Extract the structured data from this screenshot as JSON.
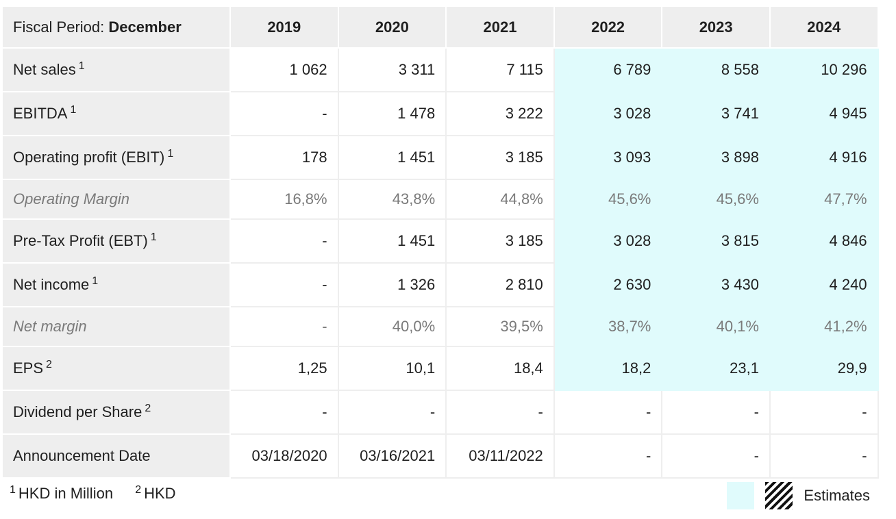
{
  "header": {
    "period_label": "Fiscal Period:",
    "period_value": "December",
    "years": [
      "2019",
      "2020",
      "2021",
      "2022",
      "2023",
      "2024"
    ]
  },
  "rows": [
    {
      "label": "Net sales",
      "note": "1",
      "values": [
        "1 062",
        "3 311",
        "7 115",
        "6 789",
        "8 558",
        "10 296"
      ]
    },
    {
      "label": "EBITDA",
      "note": "1",
      "values": [
        "-",
        "1 478",
        "3 222",
        "3 028",
        "3 741",
        "4 945"
      ]
    },
    {
      "label": "Operating profit (EBIT)",
      "note": "1",
      "values": [
        "178",
        "1 451",
        "3 185",
        "3 093",
        "3 898",
        "4 916"
      ]
    },
    {
      "label": "Operating Margin",
      "note": "",
      "values": [
        "16,8%",
        "43,8%",
        "44,8%",
        "45,6%",
        "45,6%",
        "47,7%"
      ]
    },
    {
      "label": "Pre-Tax Profit (EBT)",
      "note": "1",
      "values": [
        "-",
        "1 451",
        "3 185",
        "3 028",
        "3 815",
        "4 846"
      ]
    },
    {
      "label": "Net income",
      "note": "1",
      "values": [
        "-",
        "1 326",
        "2 810",
        "2 630",
        "3 430",
        "4 240"
      ]
    },
    {
      "label": "Net margin",
      "note": "",
      "values": [
        "-",
        "40,0%",
        "39,5%",
        "38,7%",
        "40,1%",
        "41,2%"
      ]
    },
    {
      "label": "EPS",
      "note": "2",
      "values": [
        "1,25",
        "10,1",
        "18,4",
        "18,2",
        "23,1",
        "29,9"
      ]
    },
    {
      "label": "Dividend per Share",
      "note": "2",
      "values": [
        "-",
        "-",
        "-",
        "-",
        "-",
        "-"
      ]
    },
    {
      "label": "Announcement Date",
      "note": "",
      "values": [
        "03/18/2020",
        "03/16/2021",
        "03/11/2022",
        "-",
        "-",
        "-"
      ]
    }
  ],
  "footnotes": [
    {
      "mark": "1",
      "text": "HKD in Million"
    },
    {
      "mark": "2",
      "text": "HKD"
    }
  ],
  "legend": {
    "label": "Estimates"
  },
  "colors": {
    "estimate_bg": "#e0fbfc",
    "label_bg": "#eeeeee",
    "ratio_text": "#7a7a7a"
  }
}
